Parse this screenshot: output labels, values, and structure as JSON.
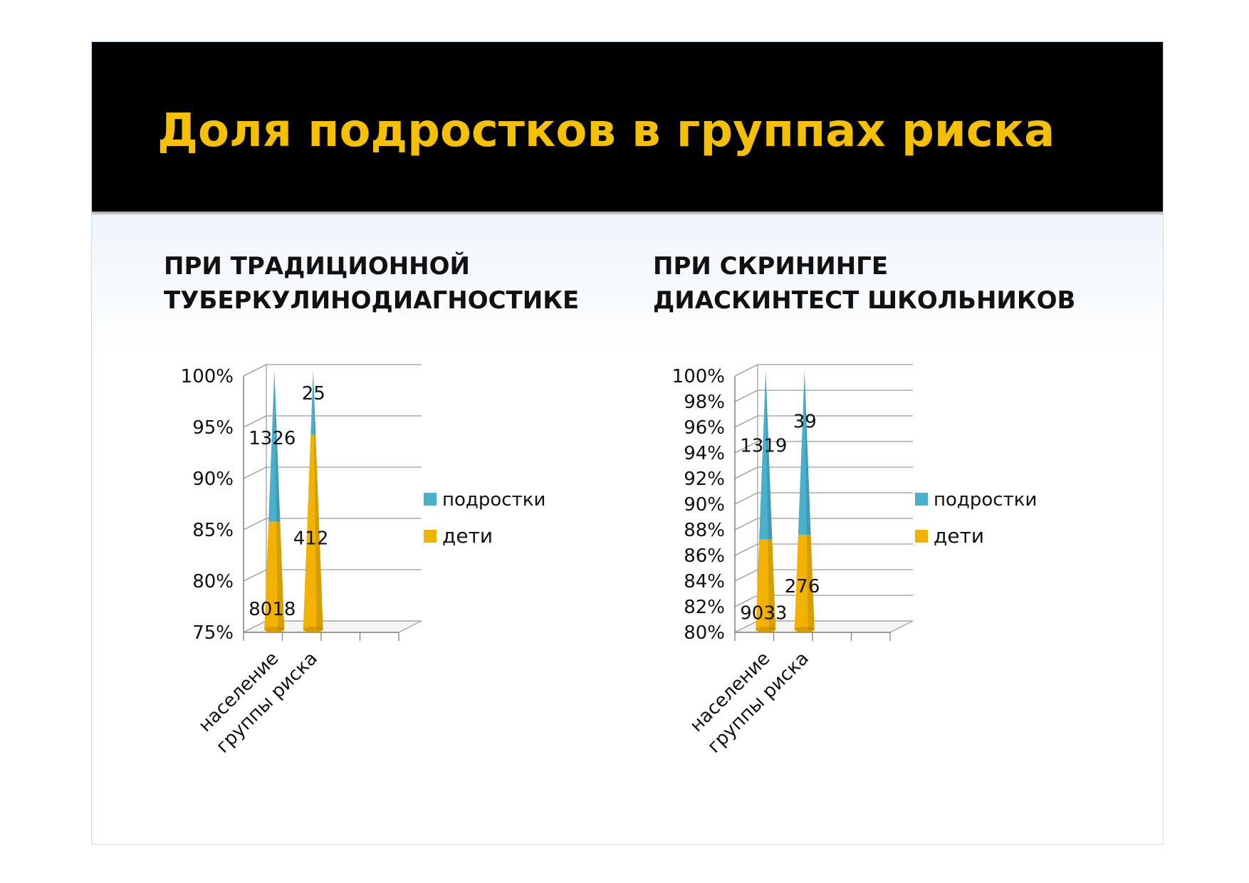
{
  "slide_title": "Доля подростков в группах риска",
  "headings": [
    {
      "line1": "ПРИ ТРАДИЦИОННОЙ",
      "line2": "ТУБЕРКУЛИНОДИАГНОСТИКЕ"
    },
    {
      "line1": "ПРИ СКРИНИНГЕ",
      "line2": "ДИАСКИНТЕСТ ШКОЛЬНИКОВ"
    }
  ],
  "colors": {
    "title": "#f5c000",
    "podrostki": "#4ab0cc",
    "deti": "#f2b300"
  },
  "chart_data": [
    {
      "type": "bar",
      "stacked": "100%",
      "categories": [
        "население",
        "группы риска"
      ],
      "ylim": [
        75,
        100
      ],
      "yticks": [
        "75%",
        "80%",
        "85%",
        "90%",
        "95%",
        "100%"
      ],
      "grid": true,
      "legend_position": "right",
      "series": [
        {
          "name": "дети",
          "color": "#f2b300",
          "values": [
            8018,
            412
          ],
          "labels": [
            "8018",
            "412"
          ]
        },
        {
          "name": "подростки",
          "color": "#4ab0cc",
          "values": [
            1326,
            25
          ],
          "labels": [
            "1326",
            "25"
          ]
        }
      ]
    },
    {
      "type": "bar",
      "stacked": "100%",
      "categories": [
        "население",
        "группы риска"
      ],
      "ylim": [
        80,
        100
      ],
      "yticks": [
        "80%",
        "82%",
        "84%",
        "86%",
        "88%",
        "90%",
        "92%",
        "94%",
        "96%",
        "98%",
        "100%"
      ],
      "grid": true,
      "legend_position": "right",
      "series": [
        {
          "name": "дети",
          "color": "#f2b300",
          "values": [
            9033,
            276
          ],
          "labels": [
            "9033",
            "276"
          ]
        },
        {
          "name": "подростки",
          "color": "#4ab0cc",
          "values": [
            1319,
            39
          ],
          "labels": [
            "1319",
            "39"
          ]
        }
      ]
    }
  ]
}
